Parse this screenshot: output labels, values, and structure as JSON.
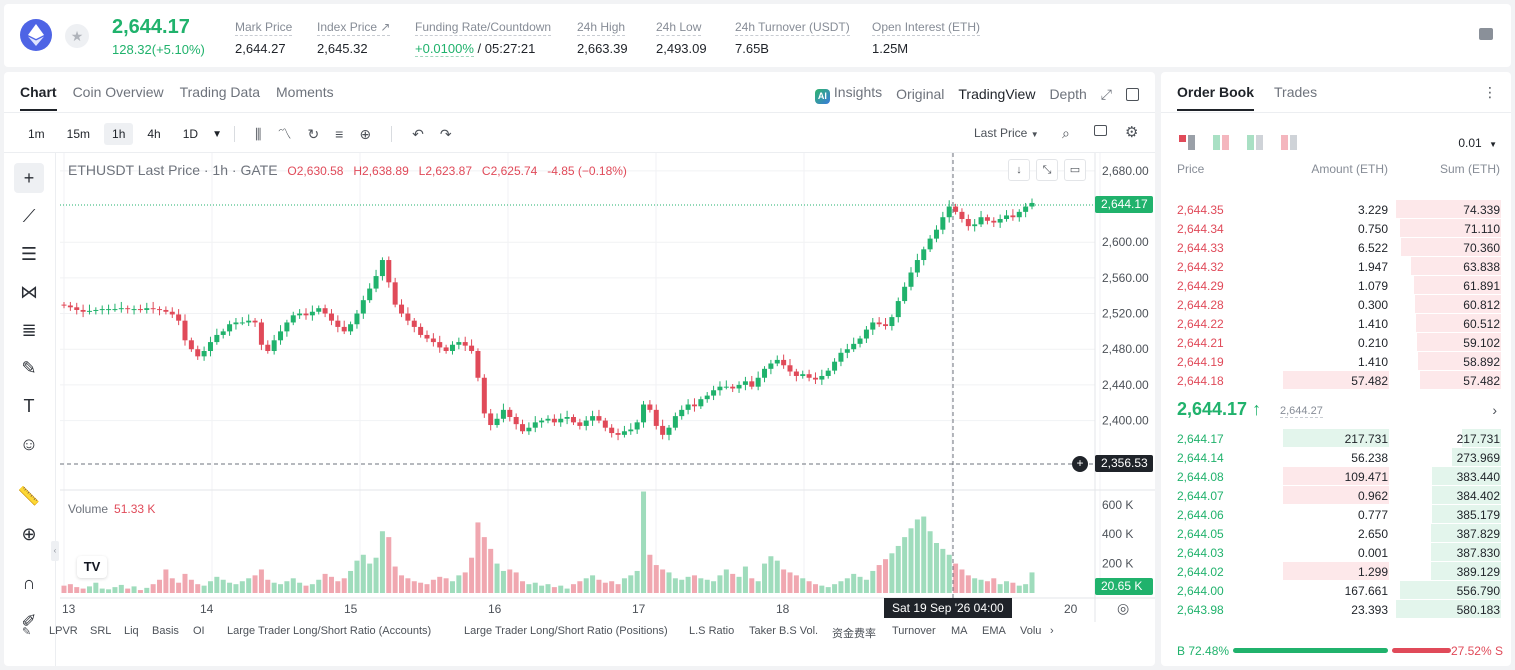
{
  "header": {
    "last_price": "2,644.17",
    "change": "128.32(+5.10%)",
    "stats": [
      {
        "label": "Mark Price",
        "value": "2,644.27"
      },
      {
        "label": "Index Price ↗",
        "value": "2,645.32"
      },
      {
        "label": "Funding Rate/Countdown",
        "value_rate": "+0.0100%",
        "value_countdown": "/ 05:27:21"
      },
      {
        "label": "24h High",
        "value": "2,663.39"
      },
      {
        "label": "24h Low",
        "value": "2,493.09"
      },
      {
        "label": "24h Turnover (USDT)",
        "value": "7.65B"
      },
      {
        "label": "Open Interest (ETH)",
        "value": "1.25M"
      }
    ]
  },
  "chart_panel": {
    "tabs": [
      "Chart",
      "Coin Overview",
      "Trading Data",
      "Moments"
    ],
    "views": [
      "Insights",
      "Original",
      "TradingView",
      "Depth"
    ],
    "ai_badge": "AI",
    "intervals": [
      "1m",
      "15m",
      "1h",
      "4h",
      "1D"
    ],
    "price_type": "Last Price",
    "legend": {
      "symbol": "ETHUSDT Last Price · 1h · GATE",
      "o": "O2,630.58",
      "h": "H2,638.89",
      "l": "L2,623.87",
      "c": "C2,625.74",
      "chg": "-4.85 (−0.18%)"
    },
    "volume_label": "Volume",
    "volume_value": "51.33 K",
    "last_price_tag": "2,644.17",
    "cursor_price_tag": "2,356.53",
    "volume_tag": "20.65 K",
    "cursor_time": "Sat 19 Sep '26   04:00",
    "indicators": [
      "LPVR",
      "SRL",
      "Liq",
      "Basis",
      "OI",
      "Large Trader Long/Short Ratio (Accounts)",
      "Large Trader Long/Short Ratio (Positions)",
      "L.S Ratio",
      "Taker B.S Vol.",
      "资金费率",
      "Turnover",
      "MA",
      "EMA",
      "Volu"
    ]
  },
  "chart_data": {
    "type": "candlestick",
    "title": "ETHUSDT Last Price · 1h · GATE",
    "y_ticks": [
      "2,680.00",
      "2,600.00",
      "2,560.00",
      "2,520.00",
      "2,480.00",
      "2,440.00",
      "2,400.00"
    ],
    "y_tick_values": [
      2680,
      2600,
      2560,
      2520,
      2480,
      2440,
      2400
    ],
    "ylim": [
      2330,
      2700
    ],
    "x_ticks": [
      "13",
      "14",
      "15",
      "16",
      "17",
      "18",
      "20"
    ],
    "vol_ticks": [
      "600 K",
      "400 K",
      "200 K"
    ],
    "vol_tick_values": [
      600,
      400,
      200
    ],
    "vol_max": 680,
    "close_path": [
      2529,
      2527,
      2524,
      2522,
      2523,
      2524,
      2525,
      2525,
      2525,
      2526,
      2525,
      2525,
      2524,
      2526,
      2525,
      2524,
      2522,
      2519,
      2512,
      2490,
      2480,
      2472,
      2478,
      2488,
      2496,
      2500,
      2508,
      2510,
      2510,
      2512,
      2510,
      2485,
      2478,
      2490,
      2500,
      2510,
      2518,
      2520,
      2518,
      2522,
      2526,
      2520,
      2512,
      2505,
      2500,
      2508,
      2520,
      2535,
      2548,
      2562,
      2580,
      2555,
      2530,
      2520,
      2512,
      2505,
      2496,
      2492,
      2488,
      2482,
      2478,
      2485,
      2488,
      2484,
      2478,
      2448,
      2408,
      2395,
      2402,
      2412,
      2404,
      2396,
      2388,
      2392,
      2398,
      2400,
      2402,
      2398,
      2402,
      2404,
      2398,
      2394,
      2400,
      2405,
      2400,
      2392,
      2386,
      2384,
      2388,
      2390,
      2398,
      2418,
      2412,
      2394,
      2384,
      2392,
      2405,
      2412,
      2418,
      2416,
      2424,
      2428,
      2434,
      2438,
      2438,
      2436,
      2440,
      2444,
      2438,
      2448,
      2458,
      2464,
      2468,
      2462,
      2455,
      2450,
      2452,
      2448,
      2446,
      2450,
      2456,
      2466,
      2476,
      2480,
      2486,
      2492,
      2502,
      2510,
      2508,
      2506,
      2516,
      2534,
      2550,
      2566,
      2580,
      2592,
      2604,
      2614,
      2628,
      2640,
      2634,
      2626,
      2618,
      2620,
      2628,
      2624,
      2622,
      2626,
      2630,
      2628,
      2634,
      2640,
      2644
    ],
    "volume": [
      50,
      60,
      40,
      30,
      45,
      70,
      30,
      25,
      40,
      55,
      30,
      45,
      20,
      35,
      60,
      90,
      160,
      100,
      70,
      130,
      90,
      60,
      50,
      80,
      110,
      90,
      70,
      60,
      80,
      100,
      120,
      160,
      90,
      70,
      60,
      80,
      100,
      70,
      50,
      60,
      90,
      130,
      110,
      80,
      100,
      150,
      220,
      260,
      200,
      240,
      420,
      380,
      180,
      120,
      100,
      80,
      70,
      60,
      90,
      110,
      100,
      80,
      120,
      140,
      240,
      480,
      380,
      300,
      200,
      150,
      160,
      140,
      80,
      60,
      70,
      50,
      60,
      40,
      50,
      30,
      60,
      80,
      100,
      120,
      90,
      70,
      80,
      60,
      100,
      120,
      150,
      690,
      260,
      190,
      160,
      140,
      100,
      90,
      110,
      120,
      100,
      90,
      80,
      120,
      160,
      130,
      110,
      180,
      100,
      80,
      200,
      250,
      220,
      160,
      140,
      120,
      100,
      80,
      60,
      50,
      40,
      60,
      80,
      100,
      130,
      110,
      90,
      150,
      190,
      230,
      270,
      320,
      380,
      440,
      500,
      520,
      420,
      340,
      300,
      260,
      200,
      160,
      120,
      100,
      90,
      80,
      100,
      60,
      80,
      70,
      50,
      60,
      140,
      60
    ]
  },
  "order_book": {
    "tabs": [
      "Order Book",
      "Trades"
    ],
    "precision": "0.01",
    "columns": [
      "Price",
      "Amount (ETH)",
      "Sum (ETH)"
    ],
    "asks": [
      {
        "price": "2,644.35",
        "amount": "3.229",
        "sum": "74.339",
        "sum_pct": 100,
        "amt_pct": 0
      },
      {
        "price": "2,644.34",
        "amount": "0.750",
        "sum": "71.110",
        "sum_pct": 96,
        "amt_pct": 0
      },
      {
        "price": "2,644.33",
        "amount": "6.522",
        "sum": "70.360",
        "sum_pct": 95,
        "amt_pct": 0
      },
      {
        "price": "2,644.32",
        "amount": "1.947",
        "sum": "63.838",
        "sum_pct": 86,
        "amt_pct": 0
      },
      {
        "price": "2,644.29",
        "amount": "1.079",
        "sum": "61.891",
        "sum_pct": 83,
        "amt_pct": 0
      },
      {
        "price": "2,644.28",
        "amount": "0.300",
        "sum": "60.812",
        "sum_pct": 82,
        "amt_pct": 0
      },
      {
        "price": "2,644.22",
        "amount": "1.410",
        "sum": "60.512",
        "sum_pct": 81,
        "amt_pct": 0
      },
      {
        "price": "2,644.21",
        "amount": "0.210",
        "sum": "59.102",
        "sum_pct": 80,
        "amt_pct": 0
      },
      {
        "price": "2,644.19",
        "amount": "1.410",
        "sum": "58.892",
        "sum_pct": 79,
        "amt_pct": 0
      },
      {
        "price": "2,644.18",
        "amount": "57.482",
        "sum": "57.482",
        "sum_pct": 77,
        "amt_pct": 100
      }
    ],
    "mid_price": "2,644.17 ↑",
    "mark_price": "2,644.27",
    "bids": [
      {
        "price": "2,644.17",
        "amount": "217.731",
        "sum": "217.731",
        "sum_pct": 37,
        "amt_pct": 100,
        "amt_color": "green"
      },
      {
        "price": "2,644.14",
        "amount": "56.238",
        "sum": "273.969",
        "sum_pct": 47,
        "amt_pct": 0,
        "amt_color": "green"
      },
      {
        "price": "2,644.08",
        "amount": "109.471",
        "sum": "383.440",
        "sum_pct": 66,
        "amt_pct": 100,
        "amt_color": "red"
      },
      {
        "price": "2,644.07",
        "amount": "0.962",
        "sum": "384.402",
        "sum_pct": 66,
        "amt_pct": 100,
        "amt_color": "red"
      },
      {
        "price": "2,644.06",
        "amount": "0.777",
        "sum": "385.179",
        "sum_pct": 66,
        "amt_pct": 0,
        "amt_color": "green"
      },
      {
        "price": "2,644.05",
        "amount": "2.650",
        "sum": "387.829",
        "sum_pct": 67,
        "amt_pct": 0,
        "amt_color": "green"
      },
      {
        "price": "2,644.03",
        "amount": "0.001",
        "sum": "387.830",
        "sum_pct": 67,
        "amt_pct": 0,
        "amt_color": "green"
      },
      {
        "price": "2,644.02",
        "amount": "1.299",
        "sum": "389.129",
        "sum_pct": 67,
        "amt_pct": 100,
        "amt_color": "red"
      },
      {
        "price": "2,644.00",
        "amount": "167.661",
        "sum": "556.790",
        "sum_pct": 96,
        "amt_pct": 0,
        "amt_color": "green"
      },
      {
        "price": "2,643.98",
        "amount": "23.393",
        "sum": "580.183",
        "sum_pct": 100,
        "amt_pct": 0,
        "amt_color": "green"
      }
    ],
    "buy_ratio": "B 72.48%",
    "sell_ratio": "27.52% S",
    "buy_ratio_value": 72.48
  },
  "colors": {
    "up": "#20b26c",
    "down": "#e04a59",
    "up_light": "#9fdcbc",
    "down_light": "#f0a7b0"
  }
}
